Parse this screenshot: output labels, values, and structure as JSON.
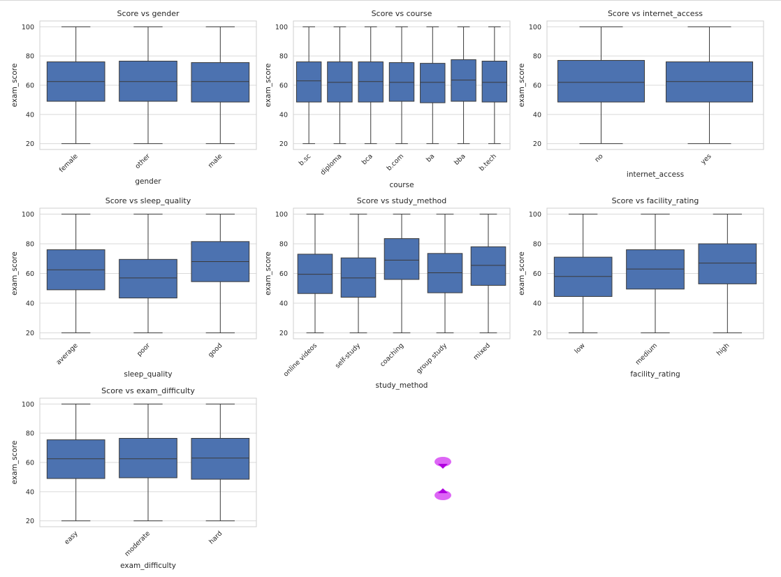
{
  "style": {
    "box_fill": "#4c72b0",
    "box_edge": "#3a3a3a",
    "grid": "#d9d9d9",
    "frame": "#cfcfcf",
    "deco_color": "#d44cf0"
  },
  "chart_data": [
    {
      "type": "box",
      "title": "Score vs gender",
      "xlabel": "gender",
      "ylabel": "exam_score",
      "ylim": [
        16,
        104
      ],
      "yticks": [
        20,
        40,
        60,
        80,
        100
      ],
      "grid": true,
      "categories": [
        "female",
        "other",
        "male"
      ],
      "boxes": [
        {
          "min": 20,
          "q1": 49,
          "median": 62.5,
          "q3": 76,
          "max": 100
        },
        {
          "min": 20,
          "q1": 49,
          "median": 62.5,
          "q3": 76.5,
          "max": 100
        },
        {
          "min": 20,
          "q1": 48.5,
          "median": 62.5,
          "q3": 75.5,
          "max": 100
        }
      ]
    },
    {
      "type": "box",
      "title": "Score vs course",
      "xlabel": "course",
      "ylabel": "exam_score",
      "ylim": [
        16,
        104
      ],
      "yticks": [
        20,
        40,
        60,
        80,
        100
      ],
      "grid": true,
      "categories": [
        "b.sc",
        "diploma",
        "bca",
        "b.com",
        "ba",
        "bba",
        "b.tech"
      ],
      "boxes": [
        {
          "min": 20,
          "q1": 48.5,
          "median": 63,
          "q3": 76,
          "max": 100
        },
        {
          "min": 20,
          "q1": 48.5,
          "median": 62,
          "q3": 76,
          "max": 100
        },
        {
          "min": 20,
          "q1": 48.5,
          "median": 62.5,
          "q3": 76,
          "max": 100
        },
        {
          "min": 20,
          "q1": 49,
          "median": 62,
          "q3": 75.5,
          "max": 100
        },
        {
          "min": 20,
          "q1": 48,
          "median": 62,
          "q3": 75,
          "max": 100
        },
        {
          "min": 20,
          "q1": 49,
          "median": 63.5,
          "q3": 77.5,
          "max": 100
        },
        {
          "min": 20,
          "q1": 48.5,
          "median": 62,
          "q3": 76.5,
          "max": 100
        }
      ]
    },
    {
      "type": "box",
      "title": "Score vs internet_access",
      "xlabel": "internet_access",
      "ylabel": "exam_score",
      "ylim": [
        16,
        104
      ],
      "yticks": [
        20,
        40,
        60,
        80,
        100
      ],
      "grid": true,
      "categories": [
        "no",
        "yes"
      ],
      "boxes": [
        {
          "min": 20,
          "q1": 48.5,
          "median": 62,
          "q3": 77,
          "max": 100
        },
        {
          "min": 20,
          "q1": 48.5,
          "median": 62.5,
          "q3": 76,
          "max": 100
        }
      ]
    },
    {
      "type": "box",
      "title": "Score vs sleep_quality",
      "xlabel": "sleep_quality",
      "ylabel": "exam_score",
      "ylim": [
        16,
        104
      ],
      "yticks": [
        20,
        40,
        60,
        80,
        100
      ],
      "grid": true,
      "categories": [
        "average",
        "poor",
        "good"
      ],
      "boxes": [
        {
          "min": 20,
          "q1": 49,
          "median": 62.5,
          "q3": 76,
          "max": 100
        },
        {
          "min": 20,
          "q1": 43.5,
          "median": 57,
          "q3": 69.5,
          "max": 100
        },
        {
          "min": 20,
          "q1": 54.5,
          "median": 68,
          "q3": 81.5,
          "max": 100
        }
      ]
    },
    {
      "type": "box",
      "title": "Score vs study_method",
      "xlabel": "study_method",
      "ylabel": "exam_score",
      "ylim": [
        16,
        104
      ],
      "yticks": [
        20,
        40,
        60,
        80,
        100
      ],
      "grid": true,
      "categories": [
        "online videos",
        "self-study",
        "coaching",
        "group study",
        "mixed"
      ],
      "boxes": [
        {
          "min": 20,
          "q1": 46.5,
          "median": 59.5,
          "q3": 73,
          "max": 100
        },
        {
          "min": 20,
          "q1": 44,
          "median": 57,
          "q3": 70.5,
          "max": 100
        },
        {
          "min": 20,
          "q1": 56,
          "median": 69,
          "q3": 83.5,
          "max": 100
        },
        {
          "min": 20,
          "q1": 47,
          "median": 60.5,
          "q3": 73.5,
          "max": 100
        },
        {
          "min": 20,
          "q1": 52,
          "median": 65.5,
          "q3": 78,
          "max": 100
        }
      ]
    },
    {
      "type": "box",
      "title": "Score vs facility_rating",
      "xlabel": "facility_rating",
      "ylabel": "exam_score",
      "ylim": [
        16,
        104
      ],
      "yticks": [
        20,
        40,
        60,
        80,
        100
      ],
      "grid": true,
      "categories": [
        "low",
        "medium",
        "high"
      ],
      "boxes": [
        {
          "min": 20,
          "q1": 44.5,
          "median": 58,
          "q3": 71,
          "max": 100
        },
        {
          "min": 20,
          "q1": 49.5,
          "median": 63,
          "q3": 76,
          "max": 100
        },
        {
          "min": 20,
          "q1": 53,
          "median": 67,
          "q3": 80,
          "max": 100
        }
      ]
    },
    {
      "type": "box",
      "title": "Score vs exam_difficulty",
      "xlabel": "exam_difficulty",
      "ylabel": "exam_score",
      "ylim": [
        16,
        104
      ],
      "yticks": [
        20,
        40,
        60,
        80,
        100
      ],
      "grid": true,
      "categories": [
        "easy",
        "moderate",
        "hard"
      ],
      "boxes": [
        {
          "min": 20,
          "q1": 49,
          "median": 62.5,
          "q3": 75.5,
          "max": 100
        },
        {
          "min": 20,
          "q1": 49.5,
          "median": 62.5,
          "q3": 76.5,
          "max": 100
        },
        {
          "min": 20,
          "q1": 48.5,
          "median": 63,
          "q3": 76.5,
          "max": 100
        }
      ]
    }
  ]
}
